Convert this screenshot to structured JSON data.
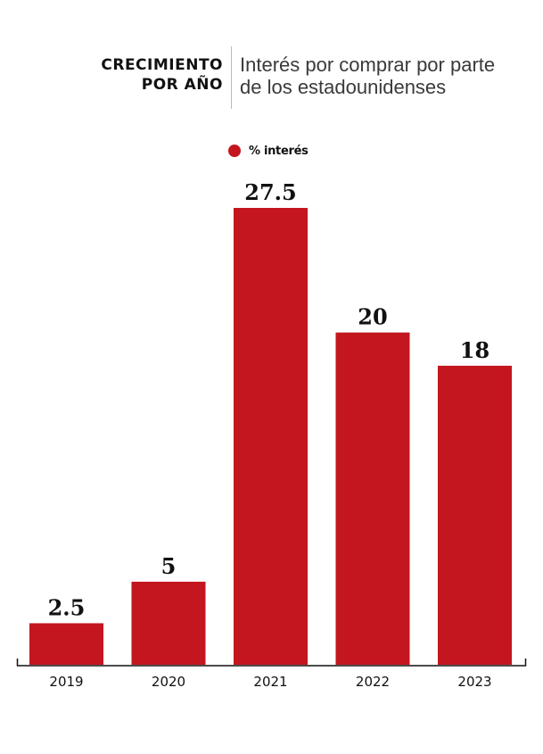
{
  "header": {
    "title_line1": "CRECIMIENTO",
    "title_line2": "POR AÑO",
    "subtitle_line1": "Interés por comprar por parte",
    "subtitle_line2": "de los estadounidenses"
  },
  "colors": {
    "bar": "#c3161f",
    "axis": "#111111"
  },
  "chart_data": {
    "type": "bar",
    "categories": [
      "2019",
      "2020",
      "2021",
      "2022",
      "2023"
    ],
    "series": [
      {
        "name": "% interés",
        "values": [
          2.5,
          5,
          27.5,
          20,
          18
        ]
      }
    ],
    "data_labels": [
      "2.5",
      "5",
      "27.5",
      "20",
      "18"
    ],
    "xlabel": "",
    "ylabel": "",
    "ylim": [
      0,
      27.5
    ],
    "grid": false,
    "legend": "top-center"
  }
}
